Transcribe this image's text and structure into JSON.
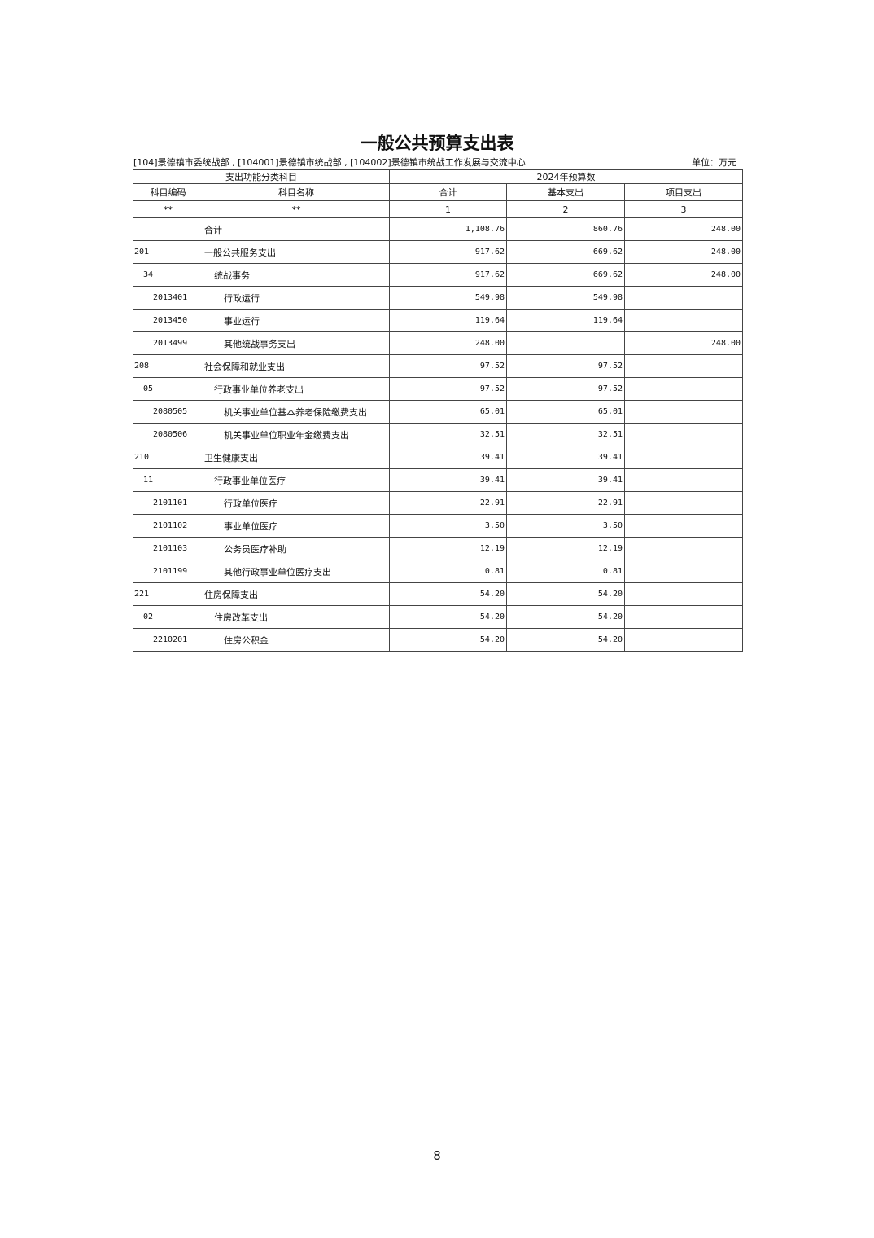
{
  "title": "一般公共预算支出表",
  "subtitle": "[104]景德镇市委统战部 , [104001]景德镇市统战部 , [104002]景德镇市统战工作发展与交流中心",
  "unit": "单位：万元",
  "header": {
    "group1": "支出功能分类科目",
    "group2": "2024年预算数",
    "code": "科目编码",
    "name": "科目名称",
    "total": "合计",
    "basic": "基本支出",
    "project": "项目支出",
    "idx": [
      "**",
      "**",
      "1",
      "2",
      "3"
    ]
  },
  "rows": [
    {
      "code": "",
      "name": "合计",
      "level": 1,
      "total": "1,108.76",
      "basic": "860.76",
      "project": "248.00"
    },
    {
      "code": "201",
      "name": "一般公共服务支出",
      "level": 1,
      "total": "917.62",
      "basic": "669.62",
      "project": "248.00"
    },
    {
      "code": "34",
      "name": "统战事务",
      "level": 2,
      "total": "917.62",
      "basic": "669.62",
      "project": "248.00"
    },
    {
      "code": "2013401",
      "name": "行政运行",
      "level": 3,
      "total": "549.98",
      "basic": "549.98",
      "project": ""
    },
    {
      "code": "2013450",
      "name": "事业运行",
      "level": 3,
      "total": "119.64",
      "basic": "119.64",
      "project": ""
    },
    {
      "code": "2013499",
      "name": "其他统战事务支出",
      "level": 3,
      "total": "248.00",
      "basic": "",
      "project": "248.00"
    },
    {
      "code": "208",
      "name": "社会保障和就业支出",
      "level": 1,
      "total": "97.52",
      "basic": "97.52",
      "project": ""
    },
    {
      "code": "05",
      "name": "行政事业单位养老支出",
      "level": 2,
      "total": "97.52",
      "basic": "97.52",
      "project": ""
    },
    {
      "code": "2080505",
      "name": "机关事业单位基本养老保险缴费支出",
      "level": 3,
      "total": "65.01",
      "basic": "65.01",
      "project": ""
    },
    {
      "code": "2080506",
      "name": "机关事业单位职业年金缴费支出",
      "level": 3,
      "total": "32.51",
      "basic": "32.51",
      "project": ""
    },
    {
      "code": "210",
      "name": "卫生健康支出",
      "level": 1,
      "total": "39.41",
      "basic": "39.41",
      "project": ""
    },
    {
      "code": "11",
      "name": "行政事业单位医疗",
      "level": 2,
      "total": "39.41",
      "basic": "39.41",
      "project": ""
    },
    {
      "code": "2101101",
      "name": "行政单位医疗",
      "level": 3,
      "total": "22.91",
      "basic": "22.91",
      "project": ""
    },
    {
      "code": "2101102",
      "name": "事业单位医疗",
      "level": 3,
      "total": "3.50",
      "basic": "3.50",
      "project": ""
    },
    {
      "code": "2101103",
      "name": "公务员医疗补助",
      "level": 3,
      "total": "12.19",
      "basic": "12.19",
      "project": ""
    },
    {
      "code": "2101199",
      "name": "其他行政事业单位医疗支出",
      "level": 3,
      "total": "0.81",
      "basic": "0.81",
      "project": ""
    },
    {
      "code": "221",
      "name": "住房保障支出",
      "level": 1,
      "total": "54.20",
      "basic": "54.20",
      "project": ""
    },
    {
      "code": "02",
      "name": "住房改革支出",
      "level": 2,
      "total": "54.20",
      "basic": "54.20",
      "project": ""
    },
    {
      "code": "2210201",
      "name": "住房公积金",
      "level": 3,
      "total": "54.20",
      "basic": "54.20",
      "project": ""
    }
  ],
  "page_number": "8"
}
